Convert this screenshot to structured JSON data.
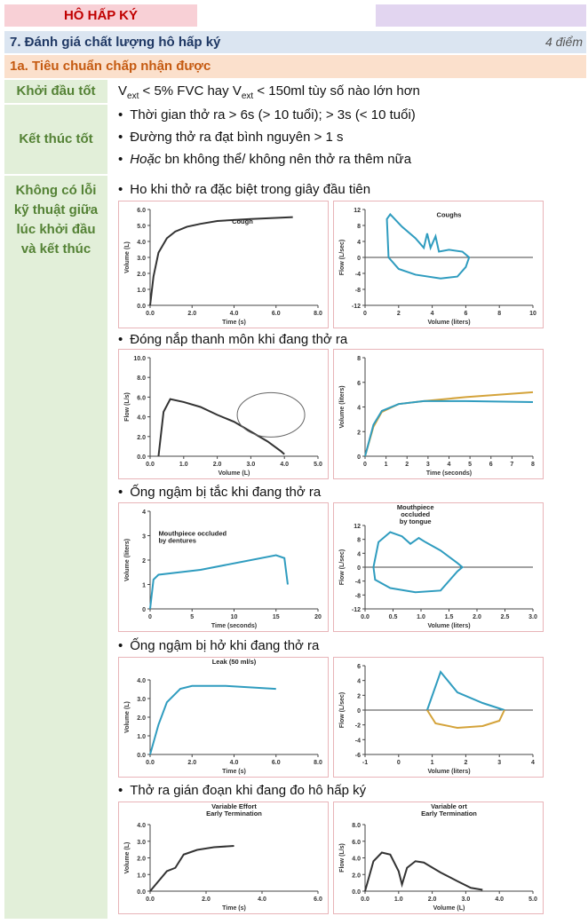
{
  "header": {
    "title": "HÔ HẤP KÝ"
  },
  "section": {
    "title": "7.  Đánh giá chất lượng hô hấp ký",
    "points": "4 điểm"
  },
  "subsection": {
    "title": "1a. Tiêu chuẩn chấp nhận được"
  },
  "rows": [
    {
      "label": "Khởi đầu tốt",
      "text": [
        "V",
        "ext",
        " < 5% FVC hay ",
        "V",
        "ext",
        " < 150ml tùy số nào lớn hơn"
      ]
    },
    {
      "label": "Kết thúc tốt",
      "bullets": [
        [
          "Thời gian thở ra > 6s (> 10 tuổi); > 3s (< 10 tuổi)"
        ],
        [
          "Đường thở ra đạt bình nguyên > 1 s"
        ],
        [
          "Hoặc",
          " bn không thể/ không nên thở ra thêm nữa"
        ]
      ]
    },
    {
      "label": "Không có lỗi  kỹ thuật giữa lúc khởi đầu và kết thúc",
      "items": [
        {
          "bullet": "Ho khi thở ra đặc biệt trong giây đầu tiên",
          "panels": [
            {
              "annotation": [
                "Cough"
              ],
              "ylabel": "Volume (L)",
              "xlabel": "Time (s)",
              "yticks": [
                "0.0",
                "1.0",
                "2.0",
                "3.0",
                "4.0",
                "5.0",
                "6.0"
              ],
              "xticks": [
                "0.0",
                "2.0",
                "4.0",
                "6.0",
                "8.0"
              ]
            },
            {
              "annotation": [
                "Coughs"
              ],
              "ylabel": "Flow (L/sec)",
              "xlabel": "Volume (liters)",
              "yticks": [
                "-12",
                "-8",
                "-4",
                "0",
                "4",
                "8",
                "12"
              ],
              "xticks": [
                "0",
                "2",
                "4",
                "6",
                "8",
                "10"
              ]
            }
          ]
        },
        {
          "bullet": "Đóng nắp thanh môn khi đang thở ra",
          "panels": [
            {
              "ylabel": "Flow (L/s)",
              "xlabel": "Volume (L)",
              "yticks": [
                "0.0",
                "2.0",
                "4.0",
                "6.0",
                "8.0",
                "10.0"
              ],
              "xticks": [
                "0.0",
                "1.0",
                "2.0",
                "3.0",
                "4.0",
                "5.0"
              ]
            },
            {
              "ylabel": "Volume (liters)",
              "xlabel": "Time (seconds)",
              "yticks": [
                "0",
                "2",
                "4",
                "6",
                "8"
              ],
              "xticks": [
                "0",
                "1",
                "2",
                "3",
                "4",
                "5",
                "6",
                "7",
                "8"
              ]
            }
          ]
        },
        {
          "bullet": "Ống ngậm bị tắc khi đang thở ra",
          "panels": [
            {
              "annotation": [
                "Mouthpiece occluded",
                "by dentures"
              ],
              "ylabel": "Volume (liters)",
              "xlabel": "Time (seconds)",
              "yticks": [
                "0",
                "1",
                "2",
                "3",
                "4"
              ],
              "xticks": [
                "0",
                "5",
                "10",
                "15",
                "20"
              ]
            },
            {
              "annotation": [
                "Mouthpiece",
                "occluded",
                "by tongue"
              ],
              "ylabel": "Flow (L/sec)",
              "xlabel": "Volume (liters)",
              "yticks": [
                "-12",
                "-8",
                "-4",
                "0",
                "4",
                "8",
                "12"
              ],
              "xticks": [
                "0.0",
                "0.5",
                "1.0",
                "1.5",
                "2.0",
                "2.5",
                "3.0"
              ]
            }
          ]
        },
        {
          "bullet": "Ống ngậm bị hở khi đang thở ra",
          "panels": [
            {
              "annotation": [
                "Leak (50 ml/s)"
              ],
              "ylabel": "Volume (L)",
              "xlabel": "Time (s)",
              "yticks": [
                "0.0",
                "1.0",
                "2.0",
                "3.0",
                "4.0"
              ],
              "xticks": [
                "0.0",
                "2.0",
                "4.0",
                "6.0",
                "8.0"
              ]
            },
            {
              "ylabel": "Flow (L/sec)",
              "xlabel": "Volume (liters)",
              "yticks": [
                "-6",
                "-4",
                "-2",
                "0",
                "2",
                "4",
                "6"
              ],
              "xticks": [
                "-1",
                "0",
                "1",
                "2",
                "3",
                "4"
              ]
            }
          ]
        },
        {
          "bullet": "Thở ra gián đoạn khi đang đo hô hấp ký",
          "panels": [
            {
              "annotation": [
                "Variable Effort",
                "Early Termination"
              ],
              "ylabel": "Volume (L)",
              "xlabel": "Time (s)",
              "yticks": [
                "0.0",
                "1.0",
                "2.0",
                "3.0",
                "4.0"
              ],
              "xticks": [
                "0.0",
                "2.0",
                "4.0",
                "6.0"
              ]
            },
            {
              "annotation": [
                "Variable     ort",
                "Early Termination"
              ],
              "ylabel": "Flow (L/s)",
              "xlabel": "Volume (L)",
              "yticks": [
                "0.0",
                "2.0",
                "4.0",
                "6.0",
                "8.0"
              ],
              "xticks": [
                "0.0",
                "1.0",
                "2.0",
                "3.0",
                "4.0",
                "5.0"
              ]
            }
          ]
        }
      ]
    }
  ]
}
